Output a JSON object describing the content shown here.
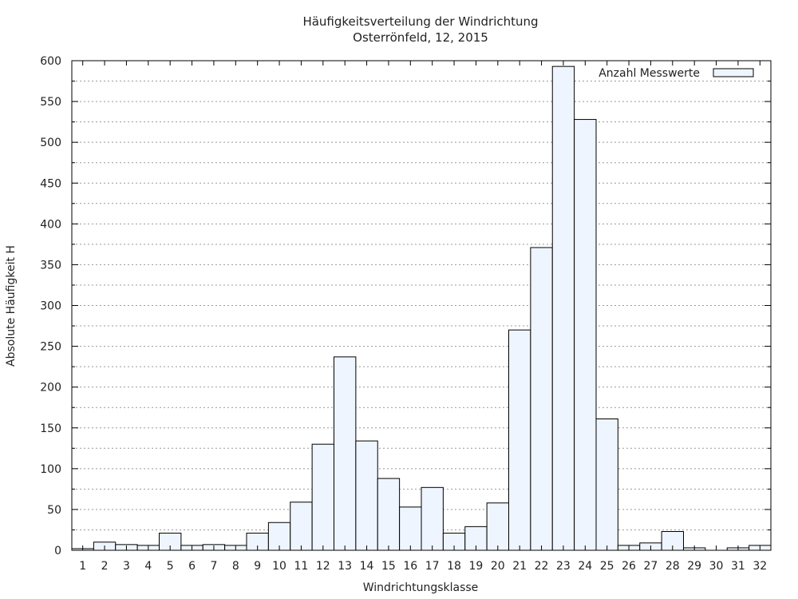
{
  "chart_data": {
    "type": "bar",
    "title": "Häufigkeitsverteilung der Windrichtung",
    "subtitle": "Osterrönfeld, 12, 2015",
    "xlabel": "Windrichtungsklasse",
    "ylabel": "Absolute Häufigkeit H",
    "ylim": [
      0,
      600
    ],
    "yticks": [
      0,
      50,
      100,
      150,
      200,
      250,
      300,
      350,
      400,
      450,
      500,
      550,
      600
    ],
    "grid": true,
    "legend_position": "top-right",
    "categories": [
      "1",
      "2",
      "3",
      "4",
      "5",
      "6",
      "7",
      "8",
      "9",
      "10",
      "11",
      "12",
      "13",
      "14",
      "15",
      "16",
      "17",
      "18",
      "19",
      "20",
      "21",
      "22",
      "23",
      "24",
      "25",
      "26",
      "27",
      "28",
      "29",
      "30",
      "31",
      "32"
    ],
    "series": [
      {
        "name": "Anzahl Messwerte",
        "values": [
          2,
          10,
          7,
          6,
          21,
          6,
          7,
          6,
          21,
          34,
          59,
          130,
          237,
          134,
          88,
          53,
          77,
          21,
          29,
          58,
          270,
          371,
          593,
          528,
          161,
          6,
          9,
          23,
          3,
          0,
          3,
          6
        ]
      }
    ],
    "bar_fill": "#eef5ff",
    "bar_stroke": "#000000",
    "grid_color": "#999999"
  }
}
